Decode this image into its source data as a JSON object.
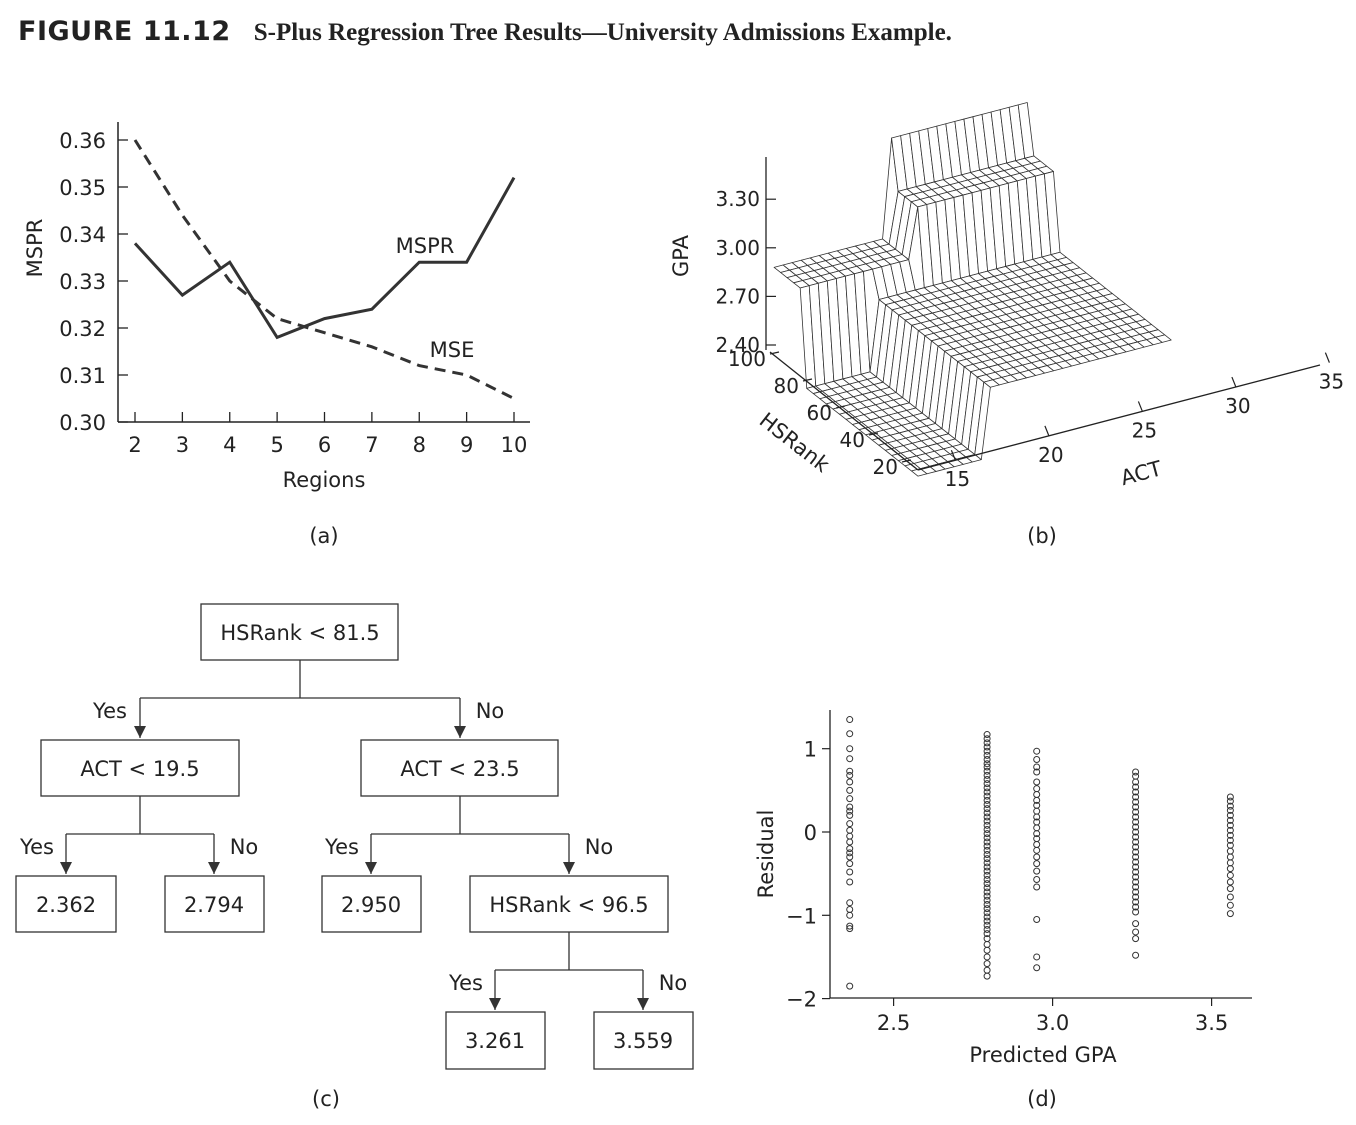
{
  "figure": {
    "label": "FIGURE 11.12",
    "title": "S-Plus Regression Tree Results—University Admissions Example."
  },
  "panels": {
    "a": "(a)",
    "b": "(b)",
    "c": "(c)",
    "d": "(d)"
  },
  "chart_data": [
    {
      "panel": "a",
      "type": "line",
      "xlabel": "Regions",
      "ylabel": "MSPR",
      "x": [
        2,
        3,
        4,
        5,
        6,
        7,
        8,
        9,
        10
      ],
      "xticks": [
        "2",
        "3",
        "4",
        "5",
        "6",
        "7",
        "8",
        "9",
        "10"
      ],
      "yticks": [
        "0.30",
        "0.31",
        "0.32",
        "0.33",
        "0.34",
        "0.35",
        "0.36"
      ],
      "ylim": [
        0.3,
        0.36
      ],
      "xlim": [
        2,
        10
      ],
      "series": [
        {
          "name": "MSPR",
          "style": "solid",
          "values": [
            0.338,
            0.327,
            0.334,
            0.318,
            0.322,
            0.324,
            0.334,
            0.334,
            0.352
          ]
        },
        {
          "name": "MSE",
          "style": "dashed",
          "values": [
            0.36,
            0.344,
            0.33,
            0.322,
            0.319,
            0.316,
            0.312,
            0.31,
            0.305
          ]
        }
      ],
      "color": "#333333"
    },
    {
      "panel": "b",
      "type": "surface",
      "zlabel": "GPA",
      "ylabel": "HSRank",
      "xlabel": "ACT",
      "zticks": [
        "2.40",
        "2.70",
        "3.00",
        "3.30"
      ],
      "yticks": [
        "20",
        "40",
        "60",
        "80",
        "100"
      ],
      "xticks": [
        "15",
        "20",
        "25",
        "30",
        "35"
      ],
      "surface_levels": [
        {
          "region": "HSRank < 81.5 and ACT < 19.5",
          "gpa": 2.362
        },
        {
          "region": "HSRank < 81.5 and ACT >= 19.5",
          "gpa": 2.794
        },
        {
          "region": "HSRank >= 81.5 and ACT < 23.5",
          "gpa": 2.95
        },
        {
          "region": "81.5 <= HSRank < 96.5 and ACT >= 23.5",
          "gpa": 3.261
        },
        {
          "region": "HSRank >= 96.5 and ACT >= 23.5",
          "gpa": 3.559
        }
      ]
    },
    {
      "panel": "c",
      "type": "tree",
      "nodes": {
        "root": "HSRank < 81.5",
        "left": "ACT < 19.5",
        "right": "ACT < 23.5",
        "leaf_ll": "2.362",
        "leaf_lr": "2.794",
        "leaf_rl": "2.950",
        "right_right": "HSRank < 96.5",
        "leaf_rrl": "3.261",
        "leaf_rrr": "3.559"
      },
      "yes": "Yes",
      "no": "No"
    },
    {
      "panel": "d",
      "type": "scatter",
      "xlabel": "Predicted GPA",
      "ylabel": "Residual",
      "xticks": [
        "2.5",
        "3.0",
        "3.5"
      ],
      "yticks": [
        "−2",
        "−1",
        "0",
        "1"
      ],
      "xlim": [
        2.3,
        3.62
      ],
      "ylim": [
        -2.0,
        1.5
      ],
      "groups": [
        {
          "x": 2.362,
          "residuals": [
            1.35,
            1.18,
            1.0,
            0.88,
            0.73,
            0.68,
            0.6,
            0.5,
            0.4,
            0.3,
            0.25,
            0.2,
            0.1,
            0.02,
            -0.05,
            -0.12,
            -0.2,
            -0.25,
            -0.3,
            -0.38,
            -0.48,
            -0.6,
            -0.85,
            -0.93,
            -1.0,
            -1.13,
            -1.16,
            -1.85
          ]
        },
        {
          "x": 2.794,
          "residuals": [
            1.17,
            1.12,
            1.07,
            1.02,
            0.97,
            0.92,
            0.87,
            0.82,
            0.78,
            0.73,
            0.68,
            0.63,
            0.58,
            0.53,
            0.48,
            0.43,
            0.38,
            0.33,
            0.28,
            0.23,
            0.18,
            0.13,
            0.08,
            0.03,
            -0.02,
            -0.07,
            -0.12,
            -0.17,
            -0.22,
            -0.27,
            -0.32,
            -0.37,
            -0.42,
            -0.47,
            -0.52,
            -0.57,
            -0.62,
            -0.67,
            -0.72,
            -0.77,
            -0.82,
            -0.87,
            -0.92,
            -0.97,
            -1.02,
            -1.07,
            -1.12,
            -1.17,
            -1.22,
            -1.28,
            -1.35,
            -1.42,
            -1.5,
            -1.58,
            -1.66,
            -1.73
          ]
        },
        {
          "x": 2.95,
          "residuals": [
            0.97,
            0.87,
            0.78,
            0.72,
            0.6,
            0.52,
            0.45,
            0.38,
            0.32,
            0.25,
            0.18,
            0.12,
            0.05,
            -0.02,
            -0.08,
            -0.15,
            -0.22,
            -0.3,
            -0.38,
            -0.47,
            -0.57,
            -0.66,
            -1.05,
            -1.5,
            -1.63
          ]
        },
        {
          "x": 3.261,
          "residuals": [
            0.72,
            0.67,
            0.6,
            0.54,
            0.48,
            0.42,
            0.36,
            0.3,
            0.24,
            0.18,
            0.12,
            0.06,
            0.0,
            -0.06,
            -0.12,
            -0.18,
            -0.24,
            -0.3,
            -0.36,
            -0.42,
            -0.48,
            -0.54,
            -0.6,
            -0.66,
            -0.72,
            -0.78,
            -0.84,
            -0.9,
            -0.96,
            -1.1,
            -1.2,
            -1.28,
            -1.48
          ]
        },
        {
          "x": 3.559,
          "residuals": [
            0.42,
            0.37,
            0.31,
            0.26,
            0.2,
            0.14,
            0.08,
            0.02,
            -0.04,
            -0.1,
            -0.16,
            -0.23,
            -0.3,
            -0.37,
            -0.44,
            -0.52,
            -0.6,
            -0.68,
            -0.78,
            -0.88,
            -0.98
          ]
        }
      ]
    }
  ]
}
